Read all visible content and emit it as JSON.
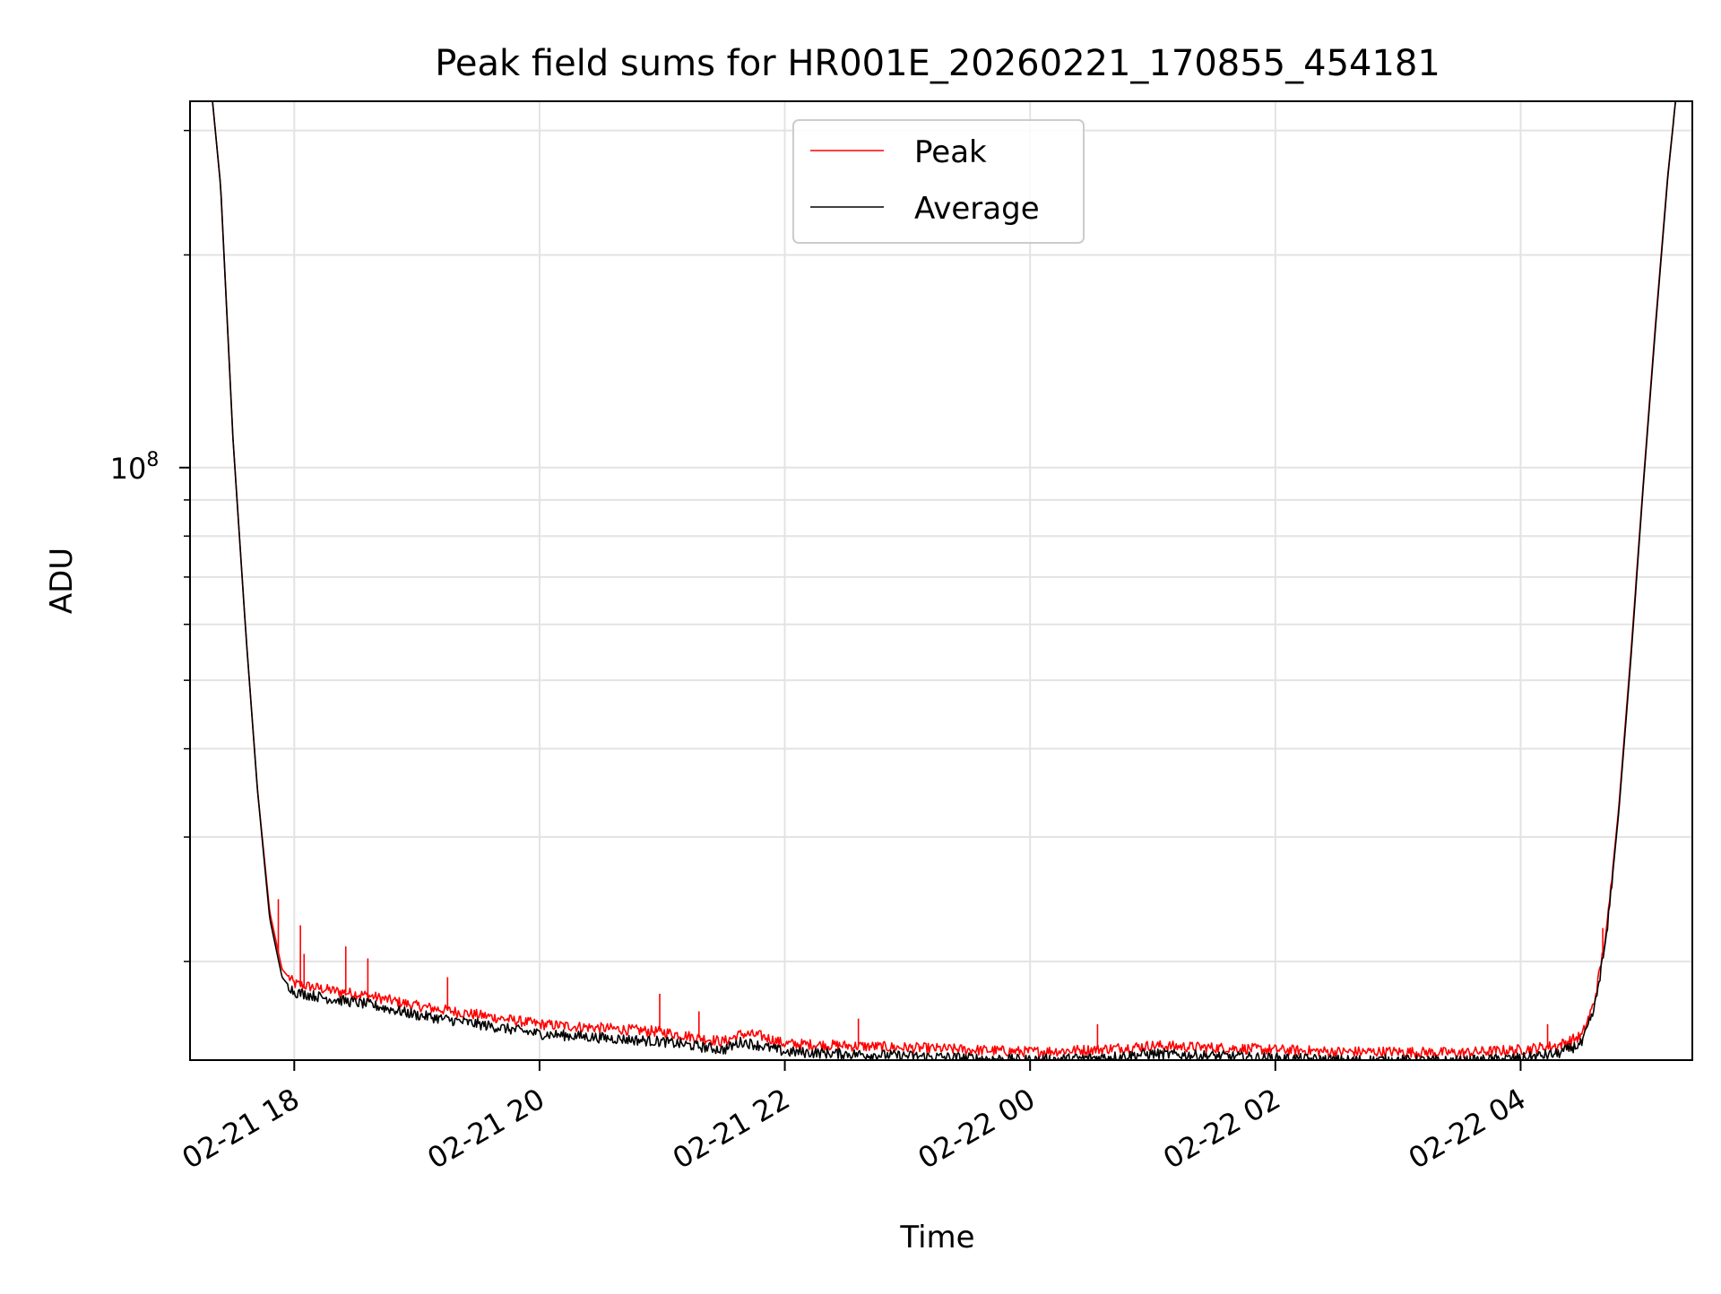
{
  "chart_data": {
    "type": "line",
    "title": "Peak field sums for HR001E_20260221_170855_454181",
    "xlabel": "Time",
    "ylabel": "ADU",
    "x_unit": "hours since 2026-02-21 00:00",
    "xlim": [
      17.15,
      29.4
    ],
    "ylim": [
      14500000,
      330000000
    ],
    "yscale": "log",
    "grid": true,
    "legend_position": "upper center",
    "x_ticks": [
      {
        "value": 18,
        "label": "02-21 18"
      },
      {
        "value": 20,
        "label": "02-21 20"
      },
      {
        "value": 22,
        "label": "02-21 22"
      },
      {
        "value": 24,
        "label": "02-22 00"
      },
      {
        "value": 26,
        "label": "02-22 02"
      },
      {
        "value": 28,
        "label": "02-22 04"
      }
    ],
    "y_major_ticks": [
      {
        "value": 100000000,
        "base": "10",
        "exp": "8"
      }
    ],
    "y_minor_ticks": [
      20000000,
      30000000,
      40000000,
      50000000,
      60000000,
      70000000,
      80000000,
      90000000,
      200000000,
      300000000
    ],
    "series": [
      {
        "name": "Peak",
        "color": "#ff0000",
        "x": [
          17.15,
          17.3,
          17.4,
          17.5,
          17.6,
          17.7,
          17.8,
          17.9,
          18.0,
          18.3,
          18.6,
          19.0,
          19.5,
          20.0,
          20.5,
          21.0,
          21.5,
          21.65,
          21.8,
          22.0,
          22.5,
          23.0,
          23.5,
          24.0,
          24.5,
          25.0,
          25.5,
          26.0,
          26.5,
          27.0,
          27.5,
          28.0,
          28.3,
          28.5,
          28.6,
          28.7,
          28.8,
          28.9,
          29.0,
          29.1,
          29.2,
          29.3,
          29.4
        ],
        "y": [
          380000000,
          380000000,
          250000000,
          110000000,
          60000000,
          35000000,
          23500000,
          19500000,
          18600000,
          18200000,
          17900000,
          17300000,
          16800000,
          16300000,
          16100000,
          15900000,
          15400000,
          15800000,
          15700000,
          15300000,
          15200000,
          15100000,
          15000000,
          14900000,
          15000000,
          15200000,
          15100000,
          15000000,
          14900000,
          14900000,
          14850000,
          15000000,
          15200000,
          15700000,
          17500000,
          22000000,
          33000000,
          55000000,
          95000000,
          160000000,
          260000000,
          380000000,
          380000000
        ],
        "spikes": [
          {
            "x": 17.87,
            "y": 24500000
          },
          {
            "x": 18.05,
            "y": 22500000
          },
          {
            "x": 18.08,
            "y": 20500000
          },
          {
            "x": 18.42,
            "y": 21000000
          },
          {
            "x": 18.6,
            "y": 20200000
          },
          {
            "x": 19.25,
            "y": 19000000
          },
          {
            "x": 20.98,
            "y": 18000000
          },
          {
            "x": 21.3,
            "y": 17000000
          },
          {
            "x": 22.6,
            "y": 16600000
          },
          {
            "x": 24.55,
            "y": 16300000
          },
          {
            "x": 28.22,
            "y": 16300000
          },
          {
            "x": 28.67,
            "y": 22300000
          }
        ]
      },
      {
        "name": "Average",
        "color": "#000000",
        "x": [
          17.15,
          17.3,
          17.4,
          17.5,
          17.6,
          17.7,
          17.8,
          17.9,
          18.0,
          18.3,
          18.6,
          19.0,
          19.5,
          20.0,
          20.5,
          21.0,
          21.5,
          21.65,
          21.8,
          22.0,
          22.5,
          23.0,
          23.5,
          24.0,
          24.5,
          25.0,
          25.5,
          26.0,
          26.5,
          27.0,
          27.5,
          28.0,
          28.3,
          28.5,
          28.6,
          28.7,
          28.8,
          28.9,
          29.0,
          29.1,
          29.2,
          29.3,
          29.4
        ],
        "y": [
          380000000,
          380000000,
          250000000,
          110000000,
          60000000,
          35000000,
          23000000,
          19000000,
          18100000,
          17700000,
          17400000,
          16800000,
          16300000,
          15800000,
          15600000,
          15400000,
          15000000,
          15400000,
          15200000,
          14900000,
          14800000,
          14700000,
          14600000,
          14500000,
          14600000,
          14800000,
          14700000,
          14600000,
          14500000,
          14500000,
          14450000,
          14600000,
          14800000,
          15300000,
          17100000,
          21600000,
          32500000,
          54000000,
          94000000,
          158000000,
          258000000,
          380000000,
          380000000
        ]
      }
    ]
  }
}
